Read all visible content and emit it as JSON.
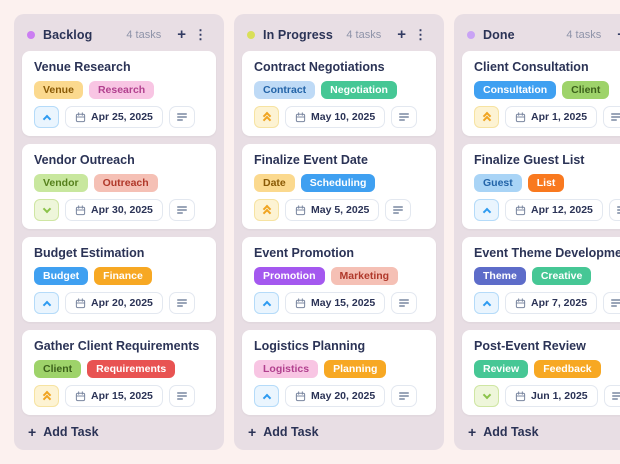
{
  "page": {
    "background_color": "#fcf1ef",
    "column_background_color": "#e8dee4",
    "card_background_color": "#ffffff",
    "title_text_color": "#2b3356",
    "count_text_color": "#8e93a9"
  },
  "icons": {
    "add_icon_glyph": "+",
    "menu_icon_glyph": "⋮",
    "calendar_icon": "calendar-outline",
    "notes_icon": "notes-lines",
    "priority_icon_names": {
      "up": "chevron-up-icon",
      "double-up": "chevrons-double-up-icon",
      "down": "chevron-down-icon"
    }
  },
  "priority_styles": {
    "up": {
      "bg": "#eaf5fe",
      "border": "#b5dbf9",
      "fg": "#2e9bf0"
    },
    "double-up": {
      "bg": "#fdf3d3",
      "border": "#f6e3a2",
      "fg": "#f0a420"
    },
    "down": {
      "bg": "#eef6da",
      "border": "#cfe6a3",
      "fg": "#8bc34a"
    }
  },
  "board": {
    "columns": [
      {
        "name": "Backlog",
        "dot_color": "#cb7ef2",
        "task_count": "4 tasks",
        "add_task_label": "Add Task",
        "cards": [
          {
            "title": "Venue Research",
            "tags": [
              {
                "label": "Venue",
                "bg": "#fbd98e",
                "fg": "#8a5a06"
              },
              {
                "label": "Research",
                "bg": "#f8c5e3",
                "fg": "#b2418f"
              }
            ],
            "priority": "up",
            "due_date": "Apr 25, 2025"
          },
          {
            "title": "Vendor Outreach",
            "tags": [
              {
                "label": "Vendor",
                "bg": "#c8e79e",
                "fg": "#55801c"
              },
              {
                "label": "Outreach",
                "bg": "#f5c0b5",
                "fg": "#b0382a"
              }
            ],
            "priority": "down",
            "due_date": "Apr 30, 2025"
          },
          {
            "title": "Budget Estimation",
            "tags": [
              {
                "label": "Budget",
                "bg": "#3fa0f1",
                "fg": "#ffffff"
              },
              {
                "label": "Finance",
                "bg": "#f7a823",
                "fg": "#ffffff"
              }
            ],
            "priority": "up",
            "due_date": "Apr 20, 2025"
          },
          {
            "title": "Gather Client Requirements",
            "tags": [
              {
                "label": "Client",
                "bg": "#9ed36a",
                "fg": "#3c611b"
              },
              {
                "label": "Requirements",
                "bg": "#e85352",
                "fg": "#ffffff"
              }
            ],
            "priority": "double-up",
            "due_date": "Apr 15, 2025"
          }
        ]
      },
      {
        "name": "In Progress",
        "dot_color": "#d9df59",
        "task_count": "4 tasks",
        "add_task_label": "Add Task",
        "cards": [
          {
            "title": "Contract Negotiations",
            "tags": [
              {
                "label": "Contract",
                "bg": "#bedaf6",
                "fg": "#2364a8"
              },
              {
                "label": "Negotiation",
                "bg": "#46c795",
                "fg": "#ffffff"
              }
            ],
            "priority": "double-up",
            "due_date": "May 10, 2025"
          },
          {
            "title": "Finalize Event Date",
            "tags": [
              {
                "label": "Date",
                "bg": "#fbd98e",
                "fg": "#8a5a06"
              },
              {
                "label": "Scheduling",
                "bg": "#3fa0f1",
                "fg": "#ffffff"
              }
            ],
            "priority": "double-up",
            "due_date": "May 5, 2025"
          },
          {
            "title": "Event Promotion",
            "tags": [
              {
                "label": "Promotion",
                "bg": "#a458ef",
                "fg": "#ffffff"
              },
              {
                "label": "Marketing",
                "bg": "#f5c0b5",
                "fg": "#b0382a"
              }
            ],
            "priority": "up",
            "due_date": "May 15, 2025"
          },
          {
            "title": "Logistics Planning",
            "tags": [
              {
                "label": "Logistics",
                "bg": "#f8c5e3",
                "fg": "#b2418f"
              },
              {
                "label": "Planning",
                "bg": "#f7a823",
                "fg": "#ffffff"
              }
            ],
            "priority": "up",
            "due_date": "May 20, 2025"
          }
        ]
      },
      {
        "name": "Done",
        "dot_color": "#c9a3f5",
        "task_count": "4 tasks",
        "add_task_label": "Add Task",
        "cards": [
          {
            "title": "Client Consultation",
            "tags": [
              {
                "label": "Consultation",
                "bg": "#3fa0f1",
                "fg": "#ffffff"
              },
              {
                "label": "Client",
                "bg": "#9ed36a",
                "fg": "#3c611b"
              }
            ],
            "priority": "double-up",
            "due_date": "Apr 1, 2025"
          },
          {
            "title": "Finalize Guest List",
            "tags": [
              {
                "label": "Guest",
                "bg": "#a9d4f6",
                "fg": "#2364a8"
              },
              {
                "label": "List",
                "bg": "#f9791f",
                "fg": "#ffffff"
              }
            ],
            "priority": "up",
            "due_date": "Apr 12, 2025"
          },
          {
            "title": "Event Theme Development",
            "tags": [
              {
                "label": "Theme",
                "bg": "#5d6cc9",
                "fg": "#ffffff"
              },
              {
                "label": "Creative",
                "bg": "#46c795",
                "fg": "#ffffff"
              }
            ],
            "priority": "up",
            "due_date": "Apr 7, 2025"
          },
          {
            "title": "Post-Event Review",
            "tags": [
              {
                "label": "Review",
                "bg": "#46c795",
                "fg": "#ffffff"
              },
              {
                "label": "Feedback",
                "bg": "#f7a823",
                "fg": "#ffffff"
              }
            ],
            "priority": "down",
            "due_date": "Jun 1, 2025"
          }
        ]
      }
    ]
  }
}
